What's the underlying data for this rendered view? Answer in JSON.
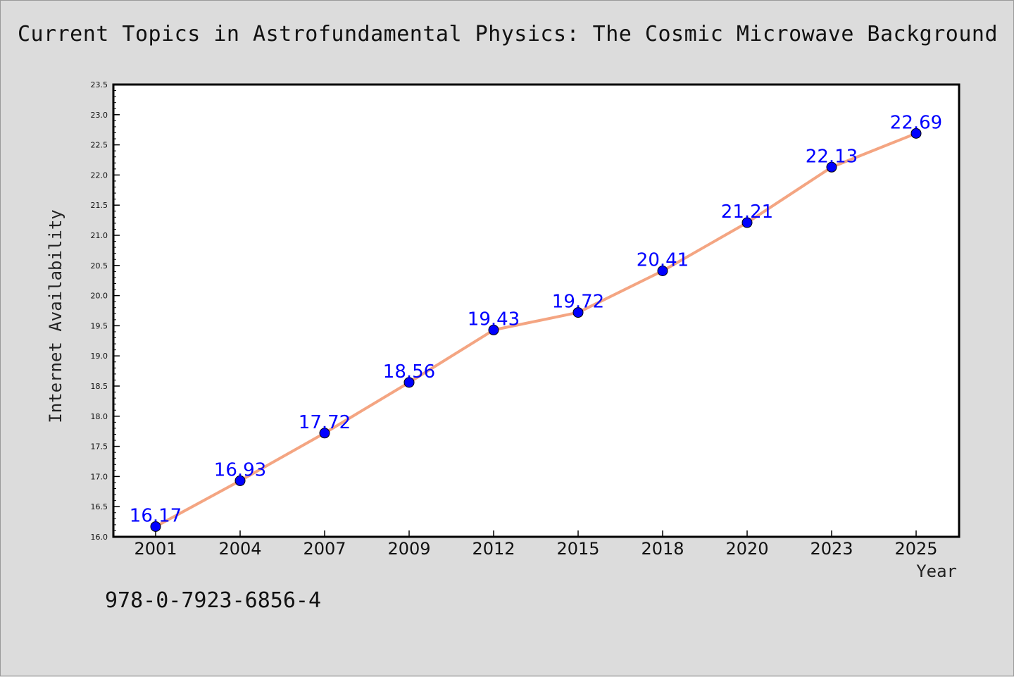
{
  "page": {
    "isbn": "978-0-7923-6856-4"
  },
  "colors": {
    "background": "#dcdcdc",
    "plot_background": "#ffffff",
    "line": "#f4a582",
    "marker": "#0000ff",
    "data_label": "#0000ff",
    "axis": "#000000"
  },
  "chart_data": {
    "type": "line",
    "title": "Current Topics in Astrofundamental Physics: The Cosmic Microwave Background",
    "xlabel": "Year",
    "ylabel": "Internet Availability",
    "categories": [
      "2001",
      "2004",
      "2007",
      "2009",
      "2012",
      "2015",
      "2018",
      "2020",
      "2023",
      "2025"
    ],
    "series": [
      {
        "values": [
          16.17,
          16.93,
          17.72,
          18.56,
          19.43,
          19.72,
          20.41,
          21.21,
          22.13,
          22.69
        ],
        "data_labels": [
          "16.17",
          "16.93",
          "17.72",
          "18.56",
          "19.43",
          "19.72",
          "20.41",
          "21.21",
          "22.13",
          "22.69"
        ]
      }
    ],
    "ylim": [
      16.0,
      23.5
    ],
    "yticks": [
      "16.0",
      "16.5",
      "17.0",
      "17.5",
      "18.0",
      "18.5",
      "19.0",
      "19.5",
      "20.0",
      "20.5",
      "21.0",
      "21.5",
      "22.0",
      "22.5",
      "23.0",
      "23.5"
    ],
    "grid": false,
    "legend": "none"
  }
}
